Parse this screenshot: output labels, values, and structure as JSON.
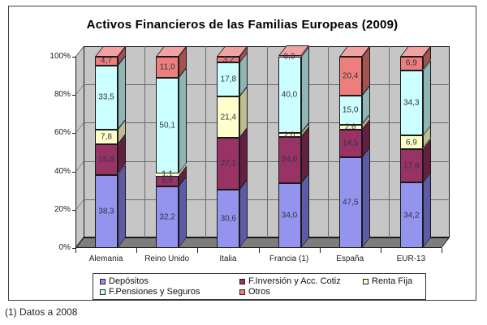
{
  "chart": {
    "title": "Activos Financieros de las Familias Europeas (2009)"
  },
  "footnote": "(1) Datos a 2008",
  "chart_data": {
    "type": "bar",
    "variant": "stacked-3d-percent",
    "title": "Activos Financieros de las Familias Europeas (2009)",
    "categories": [
      "Alemania",
      "Reino Unido",
      "Italia",
      "Francia (1)",
      "España",
      "EUR-13"
    ],
    "series": [
      {
        "name": "Depósitos",
        "color": "#9494ee",
        "side": "#5c5ca6",
        "top": "#b7b7f7",
        "values": [
          38.3,
          32.2,
          30.6,
          34.0,
          47.5,
          34.2
        ]
      },
      {
        "name": "F.Inversión y Acc. Cotiz",
        "color": "#993366",
        "side": "#632142",
        "top": "#b8608d",
        "values": [
          15.8,
          5.6,
          27.1,
          24.0,
          14.5,
          17.6
        ]
      },
      {
        "name": "Renta Fija",
        "color": "#ffffcc",
        "side": "#bdbd93",
        "top": "#ffffe2",
        "values": [
          7.8,
          1.1,
          21.4,
          2.0,
          2.6,
          6.9
        ]
      },
      {
        "name": "F.Pensiones y Seguros",
        "color": "#ccffff",
        "side": "#8fb5b5",
        "top": "#e0ffff",
        "values": [
          33.5,
          50.1,
          17.8,
          40.0,
          15.0,
          34.3
        ]
      },
      {
        "name": "Otros",
        "color": "#ee7e7e",
        "side": "#a35151",
        "top": "#f1a3a3",
        "values": [
          4.7,
          11.0,
          3.2,
          0.0,
          20.4,
          6.9
        ]
      }
    ],
    "yticks": [
      "0%",
      "20%",
      "40%",
      "60%",
      "80%",
      "100%"
    ],
    "ylim": [
      0,
      100
    ],
    "value_labels": true,
    "decimal_separator": ",",
    "legend_position": "bottom",
    "gridlines": true,
    "colors": {
      "wall": "#c6c6c6",
      "floor": "#7d7d7d",
      "grid": "#6a6a6a",
      "edge": "#1a1a1a"
    }
  }
}
